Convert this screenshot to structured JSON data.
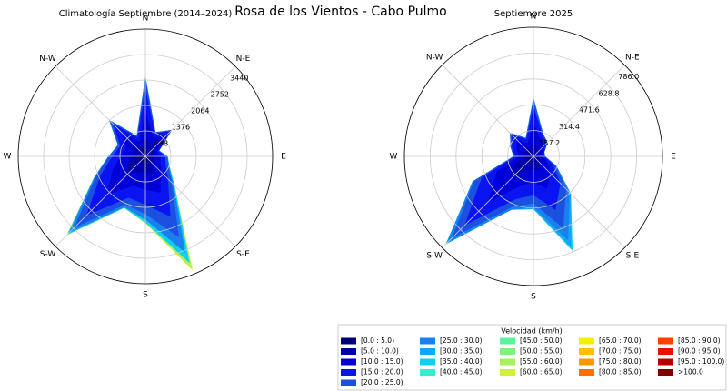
{
  "title": "Rosa de los Vientos - Cabo Pulmo",
  "legend": {
    "title": "Velocidad (km/h)",
    "items": [
      {
        "name": "[0.0 : 5.0)",
        "color": "#00007f"
      },
      {
        "name": "[5.0 : 10.0)",
        "color": "#0000a8"
      },
      {
        "name": "[10.0 : 15.0)",
        "color": "#0000d8"
      },
      {
        "name": "[15.0 : 20.0)",
        "color": "#0a14f0"
      },
      {
        "name": "[20.0 : 25.0)",
        "color": "#1c50e0"
      },
      {
        "name": "[25.0 : 30.0)",
        "color": "#1a80f0"
      },
      {
        "name": "[30.0 : 35.0)",
        "color": "#10a8ff"
      },
      {
        "name": "[35.0 : 40.0)",
        "color": "#10d0f0"
      },
      {
        "name": "[40.0 : 45.0)",
        "color": "#30f0d0"
      },
      {
        "name": "[45.0 : 50.0)",
        "color": "#5cf0a0"
      },
      {
        "name": "[50.0 : 55.0)",
        "color": "#80f080"
      },
      {
        "name": "[55.0 : 60.0)",
        "color": "#a8f060"
      },
      {
        "name": "[60.0 : 65.0)",
        "color": "#d0f040"
      },
      {
        "name": "[65.0 : 70.0)",
        "color": "#f0f000"
      },
      {
        "name": "[70.0 : 75.0)",
        "color": "#ffc000"
      },
      {
        "name": "[75.0 : 80.0)",
        "color": "#ff9800"
      },
      {
        "name": "[80.0 : 85.0)",
        "color": "#ff7000"
      },
      {
        "name": "[85.0 : 90.0)",
        "color": "#ff4000"
      },
      {
        "name": "[90.0 : 95.0)",
        "color": "#e81000"
      },
      {
        "name": "[95.0 : 100.0)",
        "color": "#b80000"
      },
      {
        "name": ">100.0",
        "color": "#7f0000"
      }
    ]
  },
  "chart_data": [
    {
      "type": "windrose",
      "title": "Climatología Septiembre (2014–2024)",
      "categories": [
        "N",
        null,
        "N-E",
        null,
        "E",
        null,
        "S-E",
        null,
        "S",
        null,
        "S-W",
        null,
        "W",
        null,
        "N-W",
        null
      ],
      "rlim": [
        0,
        3440
      ],
      "rticks": [
        688,
        1376,
        2064,
        2752,
        3440
      ],
      "grid": true,
      "series": [
        {
          "name": "[0.0 : 5.0)",
          "color": "#00007f",
          "values": [
            150,
            100,
            120,
            80,
            80,
            80,
            100,
            150,
            150,
            150,
            200,
            150,
            120,
            100,
            120,
            80
          ]
        },
        {
          "name": "[5.0 : 10.0)",
          "color": "#0000a8",
          "values": [
            350,
            200,
            280,
            120,
            150,
            150,
            200,
            300,
            300,
            300,
            450,
            350,
            250,
            200,
            300,
            150
          ]
        },
        {
          "name": "[10.0 : 15.0)",
          "color": "#0000d8",
          "values": [
            700,
            250,
            350,
            120,
            180,
            200,
            300,
            600,
            450,
            400,
            800,
            450,
            300,
            250,
            450,
            200
          ]
        },
        {
          "name": "[15.0 : 20.0)",
          "color": "#0a14f0",
          "values": [
            600,
            120,
            200,
            60,
            120,
            150,
            250,
            700,
            400,
            350,
            800,
            350,
            220,
            180,
            350,
            120
          ]
        },
        {
          "name": "[20.0 : 25.0)",
          "color": "#1c50e0",
          "values": [
            250,
            30,
            50,
            20,
            50,
            80,
            150,
            600,
            250,
            200,
            450,
            150,
            90,
            60,
            130,
            40
          ]
        },
        {
          "name": "[25.0 : 30.0)",
          "color": "#1a80f0",
          "values": [
            80,
            0,
            0,
            0,
            20,
            30,
            70,
            450,
            150,
            80,
            200,
            40,
            20,
            10,
            30,
            10
          ]
        },
        {
          "name": "[35.0 : 40.0)",
          "color": "#10d0f0",
          "values": [
            20,
            0,
            0,
            0,
            0,
            10,
            30,
            300,
            80,
            20,
            70,
            10,
            0,
            0,
            0,
            0
          ]
        },
        {
          "name": "[55.0 : 60.0)",
          "color": "#a8f060",
          "values": [
            0,
            0,
            0,
            0,
            0,
            0,
            0,
            170,
            20,
            0,
            25,
            0,
            0,
            0,
            0,
            0
          ]
        },
        {
          "name": "[65.0 : 70.0)",
          "color": "#f0f000",
          "values": [
            0,
            0,
            0,
            0,
            0,
            0,
            0,
            50,
            0,
            0,
            5,
            0,
            0,
            0,
            0,
            0
          ]
        }
      ]
    },
    {
      "type": "windrose",
      "title": "Septiembre 2025",
      "categories": [
        "N",
        null,
        "N-E",
        null,
        "E",
        null,
        "S-E",
        null,
        "S",
        null,
        "S-W",
        null,
        "W",
        null,
        "N-W",
        null
      ],
      "rlim": [
        0,
        786
      ],
      "rticks": [
        157.2,
        314.4,
        471.6,
        628.8,
        {
          "value": 786,
          "label": "786.0"
        }
      ],
      "grid": true,
      "series": [
        {
          "name": "[0.0 : 5.0)",
          "color": "#00007f",
          "values": [
            30,
            20,
            20,
            10,
            10,
            15,
            20,
            30,
            25,
            30,
            50,
            40,
            15,
            20,
            25,
            15
          ]
        },
        {
          "name": "[5.0 : 10.0)",
          "color": "#0000a8",
          "values": [
            60,
            40,
            30,
            20,
            20,
            30,
            50,
            60,
            50,
            60,
            120,
            80,
            30,
            40,
            50,
            30
          ]
        },
        {
          "name": "[10.0 : 15.0)",
          "color": "#0000d8",
          "values": [
            110,
            50,
            40,
            25,
            20,
            45,
            80,
            120,
            80,
            100,
            220,
            120,
            40,
            50,
            65,
            40
          ]
        },
        {
          "name": "[15.0 : 20.0)",
          "color": "#0a14f0",
          "values": [
            100,
            30,
            25,
            15,
            15,
            35,
            80,
            140,
            80,
            90,
            200,
            100,
            25,
            30,
            45,
            25
          ]
        },
        {
          "name": "[20.0 : 25.0)",
          "color": "#1c50e0",
          "values": [
            40,
            10,
            5,
            0,
            5,
            20,
            50,
            120,
            50,
            50,
            110,
            50,
            10,
            10,
            15,
            10
          ]
        },
        {
          "name": "[25.0 : 30.0)",
          "color": "#1a80f0",
          "values": [
            14,
            0,
            0,
            0,
            0,
            5,
            30,
            80,
            25,
            20,
            40,
            10,
            0,
            0,
            0,
            0
          ]
        },
        {
          "name": "[30.0 : 35.0)",
          "color": "#10a8ff",
          "values": [
            0,
            0,
            0,
            0,
            0,
            0,
            10,
            50,
            10,
            0,
            12,
            0,
            0,
            0,
            0,
            0
          ]
        },
        {
          "name": "[35.0 : 40.0)",
          "color": "#10d0f0",
          "values": [
            0,
            0,
            0,
            0,
            0,
            0,
            0,
            20,
            0,
            0,
            0,
            0,
            0,
            0,
            0,
            0
          ]
        }
      ]
    }
  ]
}
